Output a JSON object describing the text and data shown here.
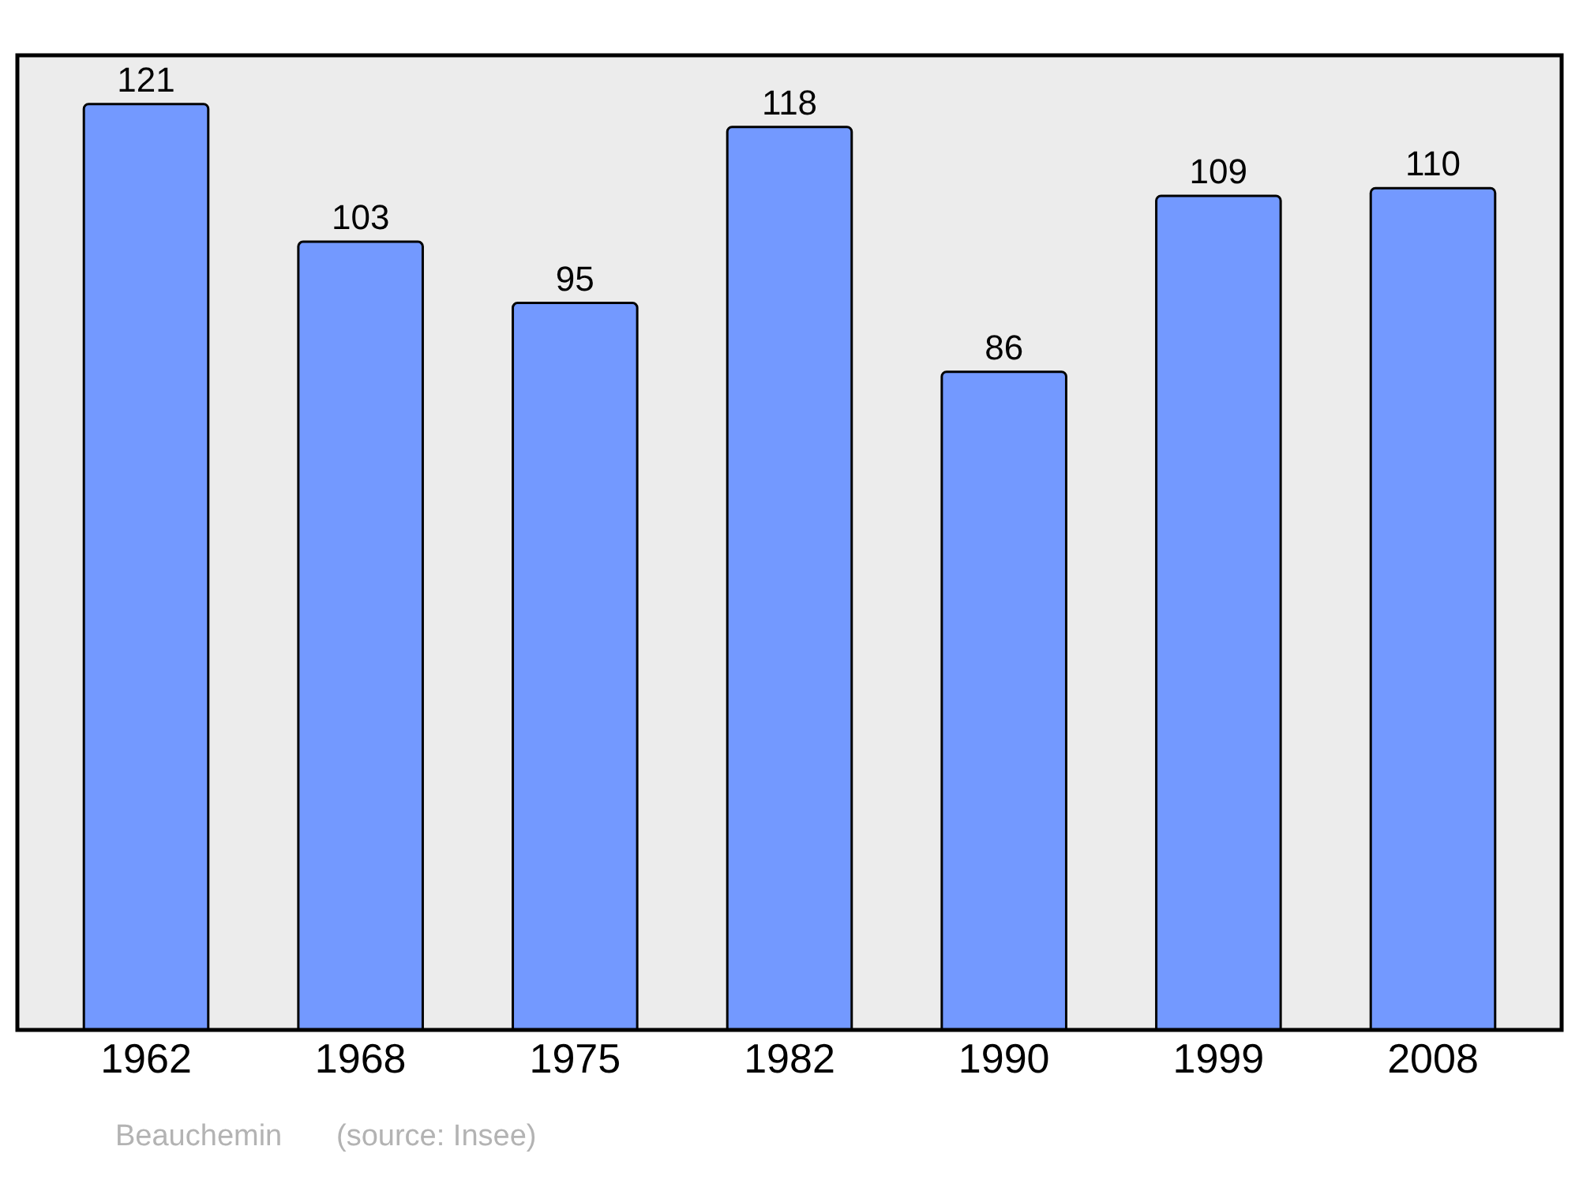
{
  "chart_data": {
    "type": "bar",
    "categories": [
      "1962",
      "1968",
      "1975",
      "1982",
      "1990",
      "1999",
      "2008"
    ],
    "values": [
      121,
      103,
      95,
      118,
      86,
      109,
      110
    ],
    "color": "#7399ff",
    "data_labels": true,
    "grid": false,
    "tick_labels": "x",
    "annotations": [
      "Beauchemin",
      "(source: Insee)"
    ]
  }
}
